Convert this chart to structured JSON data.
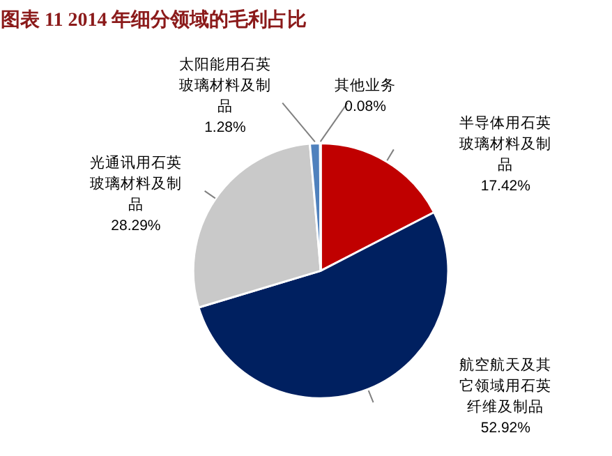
{
  "chart_data": {
    "type": "pie",
    "title": "图表 11 2014 年细分领域的毛利占比",
    "categories": [
      "半导体用石英玻璃材料及制品",
      "航空航天及其它领域用石英纤维及制品",
      "光通讯用石英玻璃材料及制品",
      "太阳能用石英玻璃材料及制品",
      "其他业务"
    ],
    "values": [
      17.42,
      52.92,
      28.29,
      1.28,
      0.08
    ],
    "value_labels": [
      "17.42%",
      "52.92%",
      "28.29%",
      "1.28%",
      "0.08%"
    ],
    "colors": [
      "#c00000",
      "#002060",
      "#c9c9c9",
      "#4f81bd",
      "#a6a6a6"
    ]
  }
}
